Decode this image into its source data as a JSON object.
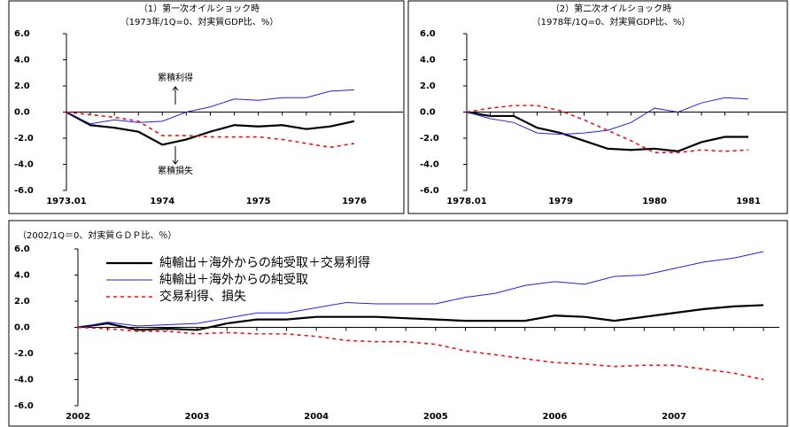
{
  "chart_data": [
    {
      "type": "line",
      "title": "（1）第一次オイルショック時",
      "subtitle": "（1973年/1Q=0、対実質GDP比、%）",
      "categories": [
        "1973.01",
        null,
        null,
        null,
        "1974",
        null,
        null,
        null,
        "1975",
        null,
        null,
        null,
        "1976"
      ],
      "series": [
        {
          "color": "#000000",
          "values": [
            0,
            -1.0,
            -1.2,
            -1.5,
            -2.5,
            -2.1,
            -1.5,
            -1.0,
            -1.1,
            -1.0,
            -1.3,
            -1.1,
            -0.7
          ]
        },
        {
          "color": "#2222dd",
          "values": [
            0,
            -0.9,
            -0.6,
            -0.8,
            -0.7,
            0.0,
            0.4,
            1.0,
            0.9,
            1.1,
            1.1,
            1.6,
            1.7
          ]
        },
        {
          "color": "#ee1111",
          "values": [
            0,
            -0.2,
            -0.4,
            -0.7,
            -1.8,
            -1.8,
            -1.9,
            -1.9,
            -1.9,
            -2.1,
            -2.4,
            -2.7,
            -2.4
          ]
        }
      ],
      "ylim": [
        -6,
        6
      ],
      "yticks": [
        {
          "value": -6,
          "label": "-6.0"
        },
        {
          "value": -4,
          "label": "-4.0"
        },
        {
          "value": -2,
          "label": "-2.0"
        },
        {
          "value": 0,
          "label": "0.0"
        },
        {
          "value": 2,
          "label": "2.0"
        },
        {
          "value": 4,
          "label": "4.0"
        },
        {
          "value": 6,
          "label": "6.0"
        }
      ],
      "annotations": [
        "累積利得",
        "累積損失"
      ]
    },
    {
      "type": "line",
      "title": "（2）第二次オイルショック時",
      "subtitle": "（1978年/1Q=0、対実質GDP比、%）",
      "categories": [
        "1978.01",
        null,
        null,
        null,
        "1979",
        null,
        null,
        null,
        "1980",
        null,
        null,
        null,
        "1981"
      ],
      "series": [
        {
          "color": "#000000",
          "values": [
            0,
            -0.3,
            -0.3,
            -1.2,
            -1.6,
            -2.2,
            -2.8,
            -2.9,
            -2.8,
            -3.0,
            -2.3,
            -1.9,
            -1.9
          ]
        },
        {
          "color": "#2222dd",
          "values": [
            0,
            -0.5,
            -0.8,
            -1.6,
            -1.7,
            -1.6,
            -1.4,
            -0.8,
            0.3,
            0.0,
            0.7,
            1.1,
            1.0
          ]
        },
        {
          "color": "#ee1111",
          "values": [
            0,
            0.3,
            0.5,
            0.5,
            0.1,
            -0.6,
            -1.4,
            -2.2,
            -3.1,
            -3.1,
            -2.9,
            -3.0,
            -2.9
          ]
        }
      ],
      "ylim": [
        -6,
        6
      ],
      "yticks": [
        {
          "value": -6,
          "label": "-6.0"
        },
        {
          "value": -4,
          "label": "-4.0"
        },
        {
          "value": -2,
          "label": "-2.0"
        },
        {
          "value": 0,
          "label": "0.0"
        },
        {
          "value": 2,
          "label": "2.0"
        },
        {
          "value": 4,
          "label": "4.0"
        },
        {
          "value": 6,
          "label": "6.0"
        }
      ]
    },
    {
      "type": "line",
      "subtitle": "（2002/1Q＝0、対実質ＧＤＰ比、％）",
      "categories": [
        "2002",
        null,
        null,
        null,
        "2003",
        null,
        null,
        null,
        "2004",
        null,
        null,
        null,
        "2005",
        null,
        null,
        null,
        "2006",
        null,
        null,
        null,
        "2007",
        null,
        null,
        null
      ],
      "series": [
        {
          "name": "純輸出＋海外からの純受取＋交易利得",
          "color": "#000000",
          "values": [
            0,
            0.3,
            -0.2,
            -0.1,
            -0.2,
            0.3,
            0.6,
            0.6,
            0.8,
            0.8,
            0.8,
            0.7,
            0.6,
            0.5,
            0.5,
            0.5,
            0.9,
            0.8,
            0.5,
            0.8,
            1.1,
            1.4,
            1.6,
            1.7
          ]
        },
        {
          "name": "純輸出＋海外からの純受取",
          "color": "#2222dd",
          "values": [
            0,
            0.4,
            0.1,
            0.2,
            0.3,
            0.7,
            1.1,
            1.1,
            1.5,
            1.9,
            1.8,
            1.8,
            1.8,
            2.3,
            2.6,
            3.2,
            3.5,
            3.3,
            3.9,
            4.0,
            4.5,
            5.0,
            5.3,
            5.8
          ]
        },
        {
          "name": "交易利得、損失",
          "color": "#ee1111",
          "values": [
            0,
            -0.1,
            -0.3,
            -0.3,
            -0.5,
            -0.4,
            -0.5,
            -0.5,
            -0.7,
            -1.0,
            -1.1,
            -1.1,
            -1.3,
            -1.8,
            -2.1,
            -2.4,
            -2.7,
            -2.8,
            -3.0,
            -2.9,
            -2.9,
            -3.2,
            -3.5,
            -4.0
          ]
        }
      ],
      "ylim": [
        -6,
        6
      ],
      "yticks": [
        {
          "value": -6,
          "label": "-6.0"
        },
        {
          "value": -4,
          "label": "-4.0"
        },
        {
          "value": -2,
          "label": "-2.0"
        },
        {
          "value": 0,
          "label": "0.0"
        },
        {
          "value": 2,
          "label": "2.0"
        },
        {
          "value": 4,
          "label": "4.0"
        },
        {
          "value": 6,
          "label": "6.0"
        }
      ]
    }
  ]
}
